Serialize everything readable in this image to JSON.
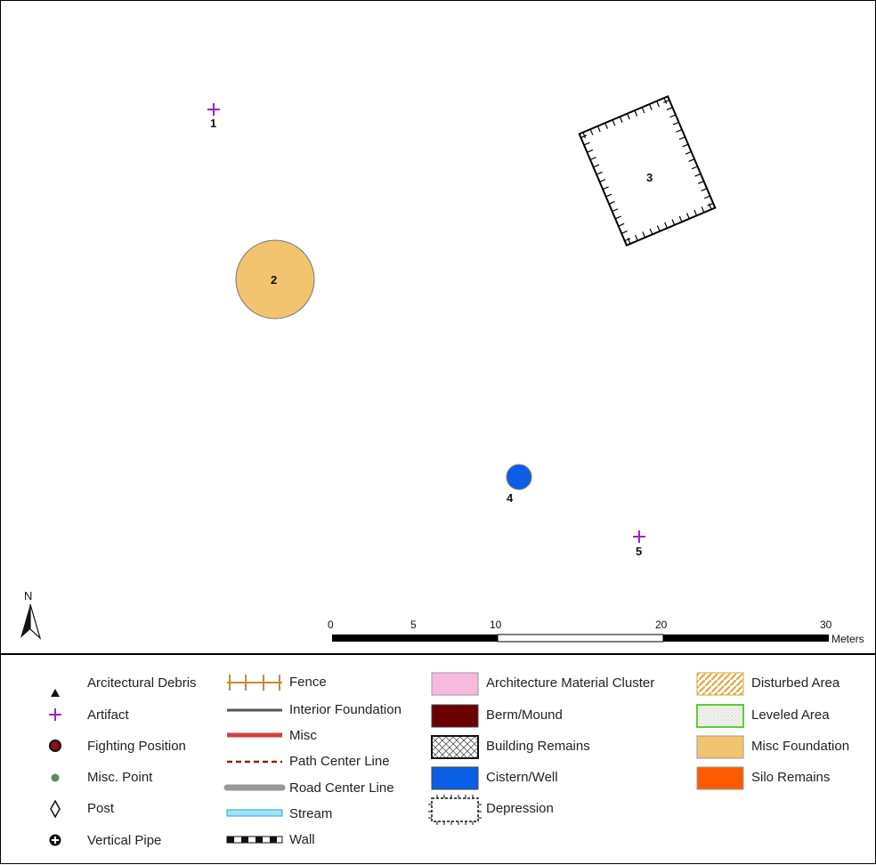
{
  "features": [
    {
      "id": "1",
      "type": "Artifact"
    },
    {
      "id": "2",
      "type": "Misc Foundation"
    },
    {
      "id": "3",
      "type": "Depression"
    },
    {
      "id": "4",
      "type": "Cistern/Well"
    },
    {
      "id": "5",
      "type": "Artifact"
    }
  ],
  "north_arrow": {
    "label": "N"
  },
  "scale_bar": {
    "ticks": [
      "0",
      "5",
      "10",
      "20",
      "30"
    ],
    "unit": "Meters"
  },
  "legend": {
    "points": [
      {
        "label": "Arcitectural Debris",
        "icon": "triangle-icon"
      },
      {
        "label": "Artifact",
        "icon": "plus-icon"
      },
      {
        "label": "Fighting Position",
        "icon": "dark-red-circle-icon"
      },
      {
        "label": "Misc. Point",
        "icon": "green-dot-icon"
      },
      {
        "label": "Post",
        "icon": "diamond-icon"
      },
      {
        "label": "Vertical Pipe",
        "icon": "circle-cross-icon"
      }
    ],
    "lines": [
      {
        "label": "Fence",
        "icon": "fence-line-icon"
      },
      {
        "label": "Interior Foundation",
        "icon": "grey-line-icon"
      },
      {
        "label": "Misc",
        "icon": "red-line-icon"
      },
      {
        "label": "Path Center Line",
        "icon": "dashed-line-icon"
      },
      {
        "label": "Road Center Line",
        "icon": "thick-grey-line-icon"
      },
      {
        "label": "Stream",
        "icon": "stream-line-icon"
      },
      {
        "label": "Wall",
        "icon": "wall-line-icon"
      }
    ],
    "areas1": [
      {
        "label": "Architecture Material Cluster",
        "icon": "pink-fill-icon"
      },
      {
        "label": "Berm/Mound",
        "icon": "maroon-fill-icon"
      },
      {
        "label": "Building Remains",
        "icon": "crosshatch-fill-icon"
      },
      {
        "label": "Cistern/Well",
        "icon": "blue-fill-icon"
      },
      {
        "label": "Depression",
        "icon": "depression-fill-icon"
      }
    ],
    "areas2": [
      {
        "label": "Disturbed Area",
        "icon": "hatch-fill-icon"
      },
      {
        "label": "Leveled Area",
        "icon": "stipple-fill-icon"
      },
      {
        "label": "Misc Foundation",
        "icon": "tan-fill-icon"
      },
      {
        "label": "Silo Remains",
        "icon": "orange-fill-icon"
      }
    ]
  },
  "colors": {
    "artifact": "#a020c8",
    "foundation": "#f2c46f",
    "cistern": "#0a5fe6",
    "pink": "#f8b9df",
    "maroon": "#6b0000",
    "orange": "#ff5a00",
    "fence": "#c98a3a"
  }
}
